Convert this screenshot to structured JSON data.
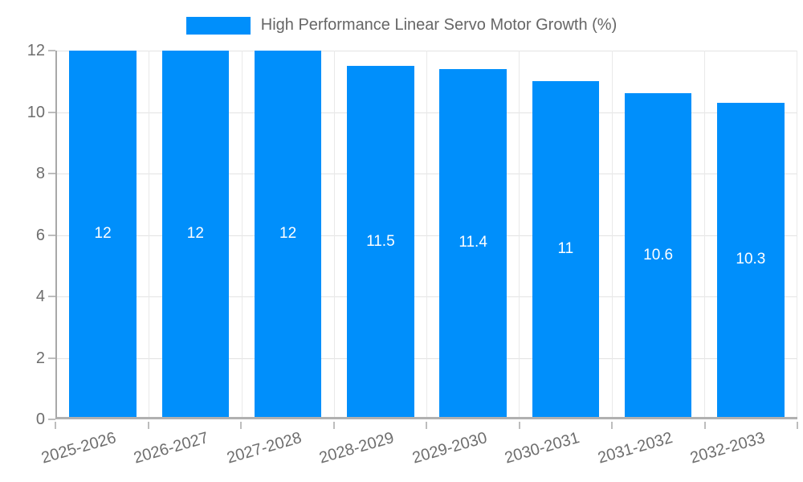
{
  "legend": {
    "label": "High Performance Linear Servo Motor Growth (%)"
  },
  "chart_data": {
    "type": "bar",
    "title": "High Performance Linear Servo Motor Growth (%)",
    "categories": [
      "2025-2026",
      "2026-2027",
      "2027-2028",
      "2028-2029",
      "2029-2030",
      "2030-2031",
      "2031-2032",
      "2032-2033"
    ],
    "values": [
      12,
      12,
      12,
      11.5,
      11.4,
      11,
      10.6,
      10.3
    ],
    "xlabel": "",
    "ylabel": "",
    "ylim": [
      0,
      12
    ],
    "yticks": [
      0,
      2,
      4,
      6,
      8,
      10,
      12
    ],
    "grid": "both",
    "legend_position": "top-center",
    "bar_color": "#008FFB",
    "value_label_color": "#ffffff",
    "axis_text_color": "#6e6e6e",
    "gridline_color": "#e3e3e3",
    "axis_line_color": "#a8a8a8"
  }
}
